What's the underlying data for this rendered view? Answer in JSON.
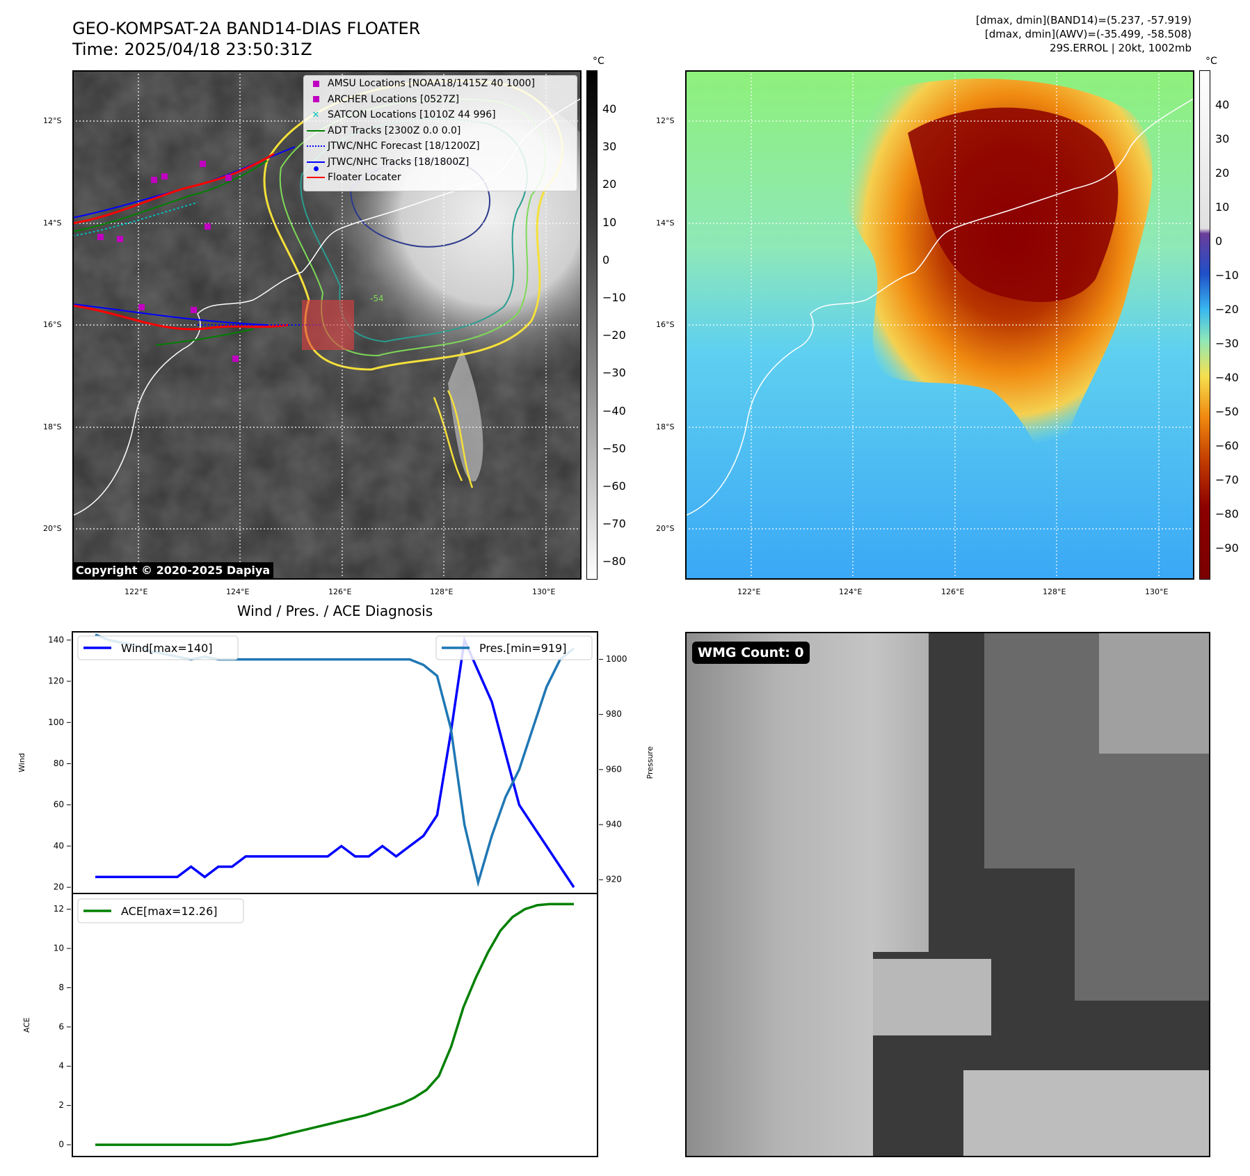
{
  "header": {
    "title_line1": "GEO-KOMPSAT-2A BAND14-DIAS FLOATER",
    "title_line2": "Time: 2025/04/18 23:50:31Z",
    "right_line1": "[dmax, dmin](BAND14)=(5.237, -57.919)",
    "right_line2": "[dmax, dmin](AWV)=(-35.499, -58.508)",
    "right_line3": "29S.ERROL | 20kt, 1002mb"
  },
  "map": {
    "lat_labels": [
      "12°S",
      "14°S",
      "16°S",
      "18°S",
      "20°S"
    ],
    "lon_labels": [
      "122°E",
      "124°E",
      "126°E",
      "128°E",
      "130°E"
    ],
    "copyright": "Copyright © 2020-2025 Dapiya",
    "contour_label": "-54",
    "colorbar_unit": "°C",
    "left_colorbar_ticks": [
      "40",
      "30",
      "20",
      "10",
      "0",
      "−10",
      "−20",
      "−30",
      "−40",
      "−50",
      "−60",
      "−70",
      "−80"
    ],
    "right_colorbar_ticks": [
      "40",
      "30",
      "20",
      "10",
      "0",
      "−10",
      "−20",
      "−30",
      "−40",
      "−50",
      "−60",
      "−70",
      "−80",
      "−90"
    ],
    "legend": [
      {
        "label": "AMSU Locations [NOAA18/1415Z 40 1000]",
        "icon": "magenta-square"
      },
      {
        "label": "ARCHER Locations [0527Z]",
        "icon": "magenta-square"
      },
      {
        "label": "SATCON Locations [1010Z 44 996]",
        "icon": "cyan-x"
      },
      {
        "label": "ADT Tracks [2300Z 0.0 0.0]",
        "icon": "green-line"
      },
      {
        "label": "JTWC/NHC Forecast [18/1200Z]",
        "icon": "blue-dotted-line"
      },
      {
        "label": "JTWC/NHC Tracks [18/1800Z]",
        "icon": "blue-line-dot"
      },
      {
        "label": "Floater Locater",
        "icon": "red-line"
      }
    ],
    "colors": {
      "amsu": "#c000c0",
      "satcon": "#00c0c0",
      "adt": "#008000",
      "jtwc": "#0000ff",
      "floater": "#ff0000"
    }
  },
  "diagnosis": {
    "title": "Wind / Pres. / ACE Diagnosis",
    "wnd_ylabel": "Wind",
    "pres_ylabel": "Pressure",
    "ace_ylabel": "ACE",
    "wind_legend": "Wind[max=140]",
    "pres_legend": "Pres.[min=919]",
    "ace_legend": "ACE[max=12.26]"
  },
  "wmg": {
    "label": "WMG Count: 0"
  },
  "chart_data": [
    {
      "type": "line",
      "title": "Wind / Pres. / ACE Diagnosis",
      "ylabel": "Wind",
      "y2label": "Pressure",
      "ylim": [
        17,
        144
      ],
      "y2lim": [
        915,
        1010
      ],
      "yticks": [
        20,
        40,
        60,
        80,
        100,
        120,
        140
      ],
      "y2ticks": [
        920,
        940,
        960,
        980,
        1000
      ],
      "series": [
        {
          "name": "Wind[max=140]",
          "color": "#0000ff",
          "axis": "left",
          "values": [
            25,
            25,
            25,
            25,
            25,
            25,
            25,
            30,
            25,
            30,
            30,
            35,
            35,
            35,
            35,
            35,
            35,
            35,
            40,
            35,
            35,
            40,
            35,
            40,
            45,
            55,
            95,
            140,
            125,
            110,
            85,
            60,
            50,
            40,
            30,
            20
          ]
        },
        {
          "name": "Pres.[min=919]",
          "color": "#1f77b4",
          "axis": "right",
          "values": [
            1009,
            1007,
            1006,
            1005,
            1003,
            1002,
            1001,
            1000,
            1001,
            1000,
            1000,
            1000,
            1000,
            1000,
            1000,
            1000,
            1000,
            1000,
            1000,
            1000,
            1000,
            1000,
            1000,
            1000,
            998,
            994,
            975,
            940,
            919,
            936,
            950,
            960,
            975,
            990,
            1000,
            1004
          ]
        }
      ]
    },
    {
      "type": "area",
      "title": "",
      "ylabel": "ACE",
      "ylim": [
        -0.6,
        12.8
      ],
      "yticks": [
        0,
        2,
        4,
        6,
        8,
        10,
        12
      ],
      "series": [
        {
          "name": "ACE[max=12.26]",
          "color": "#008000",
          "values": [
            0,
            0,
            0,
            0,
            0,
            0,
            0,
            0,
            0,
            0,
            0,
            0,
            0.1,
            0.2,
            0.3,
            0.45,
            0.6,
            0.75,
            0.9,
            1.05,
            1.2,
            1.35,
            1.5,
            1.7,
            1.9,
            2.1,
            2.4,
            2.8,
            3.5,
            5.0,
            7.0,
            8.5,
            9.8,
            10.9,
            11.6,
            12.0,
            12.2,
            12.26,
            12.26,
            12.26
          ]
        }
      ]
    }
  ]
}
